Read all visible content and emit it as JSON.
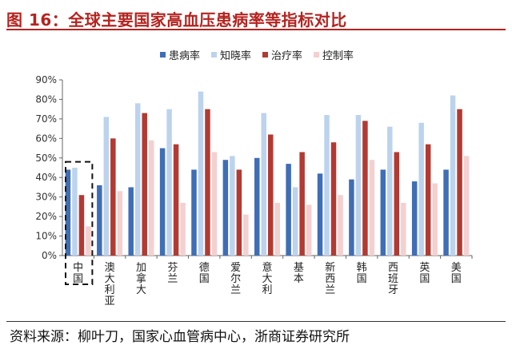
{
  "title": "图 16：全球主要国家高血压患病率等指标对比",
  "source": "资料来源：柳叶刀，国家心血管病中心，浙商证券研究所",
  "colors": {
    "accent": "#b5231f",
    "series": [
      "#3f6eb7",
      "#bcd3ee",
      "#b23a32",
      "#f4d0d0"
    ]
  },
  "chart_data": {
    "type": "bar",
    "categories": [
      "中国",
      "澳大利亚",
      "加拿大",
      "芬兰",
      "德国",
      "爱尔兰",
      "意大利",
      "基本",
      "新西兰",
      "韩国",
      "西班牙",
      "英国",
      "美国"
    ],
    "series": [
      {
        "name": "患病率",
        "values": [
          44,
          36,
          35,
          55,
          44,
          49,
          50,
          47,
          42,
          39,
          44,
          38,
          44
        ]
      },
      {
        "name": "知晓率",
        "values": [
          45,
          71,
          78,
          75,
          84,
          51,
          73,
          35,
          72,
          72,
          66,
          68,
          82
        ]
      },
      {
        "name": "治疗率",
        "values": [
          31,
          60,
          73,
          57,
          75,
          44,
          62,
          53,
          58,
          69,
          53,
          57,
          75
        ]
      },
      {
        "name": "控制率",
        "values": [
          15,
          33,
          59,
          27,
          53,
          21,
          27,
          26,
          31,
          49,
          27,
          37,
          51
        ]
      }
    ],
    "yticks": [
      "0%",
      "10%",
      "20%",
      "30%",
      "40%",
      "50%",
      "60%",
      "70%",
      "80%",
      "90%"
    ],
    "ylim": [
      0,
      90
    ],
    "highlight": "中国",
    "grid": false,
    "legend": "top"
  }
}
